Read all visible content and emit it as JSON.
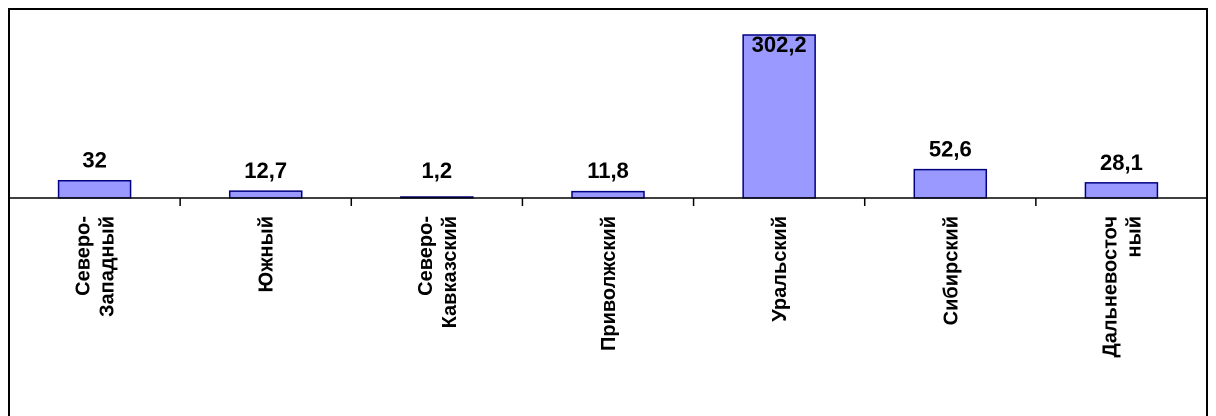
{
  "chart_data": {
    "type": "bar",
    "title": "",
    "xlabel": "",
    "ylabel": "",
    "grid": false,
    "legend": "none",
    "bar_color": "#9999ff",
    "bar_border": "#000080",
    "ylim": [
      0,
      302.2
    ],
    "categories": [
      [
        "Северо-",
        "Западный"
      ],
      [
        "Южный"
      ],
      [
        "Северо-",
        "Кавказский"
      ],
      [
        "Приволжский"
      ],
      [
        "Уральский"
      ],
      [
        "Сибирский"
      ],
      [
        "Дальневосточ",
        "ный"
      ]
    ],
    "values": [
      32,
      12.7,
      1.2,
      11.8,
      302.2,
      52.6,
      28.1
    ],
    "value_labels": [
      "32",
      "12,7",
      "1,2",
      "11,8",
      "302,2",
      "52,6",
      "28,1"
    ]
  }
}
